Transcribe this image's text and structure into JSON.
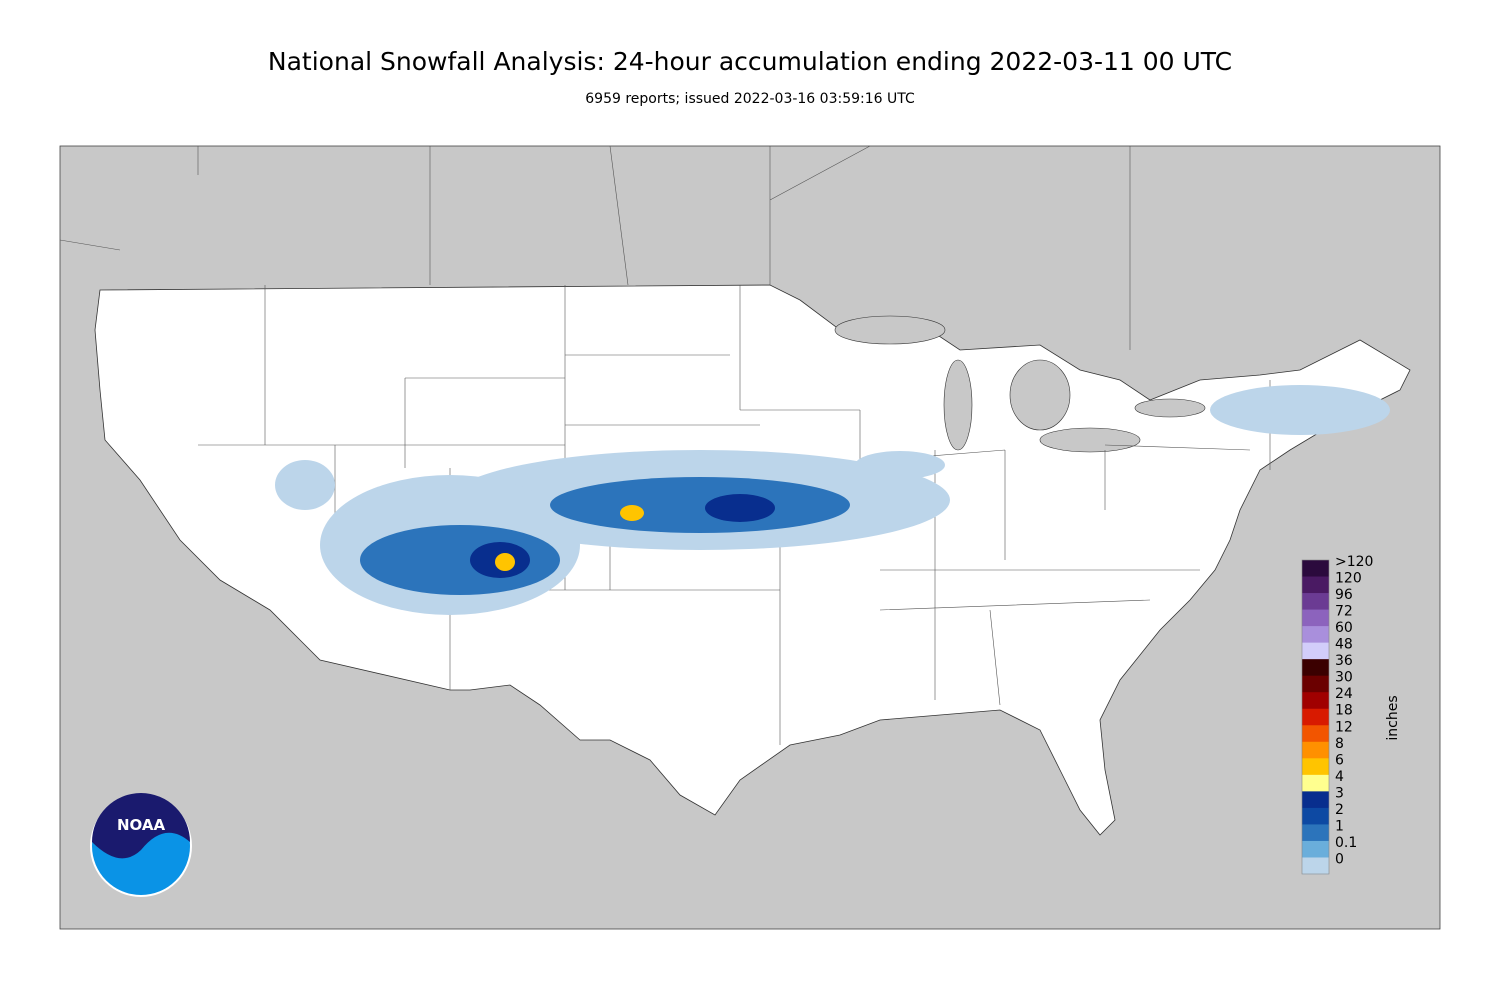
{
  "header": {
    "title": "National Snowfall Analysis: 24-hour accumulation ending 2022-03-11 00 UTC",
    "subtitle": "6959 reports; issued 2022-03-16 03:59:16 UTC"
  },
  "logo": {
    "text": "NOAA"
  },
  "legend": {
    "unit": "inches",
    "bins": [
      {
        "label": ">120",
        "color": "#2b0a3d"
      },
      {
        "label": "120",
        "color": "#4a1a63"
      },
      {
        "label": "96",
        "color": "#6b3b93"
      },
      {
        "label": "72",
        "color": "#8c63bd"
      },
      {
        "label": "60",
        "color": "#a98fdc"
      },
      {
        "label": "48",
        "color": "#d2cdfa"
      },
      {
        "label": "36",
        "color": "#3b0000"
      },
      {
        "label": "30",
        "color": "#6b0000"
      },
      {
        "label": "24",
        "color": "#a00000"
      },
      {
        "label": "18",
        "color": "#d81a00"
      },
      {
        "label": "12",
        "color": "#f25500"
      },
      {
        "label": "8",
        "color": "#ff9000"
      },
      {
        "label": "6",
        "color": "#ffc400"
      },
      {
        "label": "4",
        "color": "#ffff8f"
      },
      {
        "label": "3",
        "color": "#082e8e"
      },
      {
        "label": "2",
        "color": "#0d49a3"
      },
      {
        "label": "1",
        "color": "#2c74bb"
      },
      {
        "label": "0.1",
        "color": "#6aaedb"
      },
      {
        "label": "0",
        "color": "#bcd5ea"
      }
    ]
  }
}
